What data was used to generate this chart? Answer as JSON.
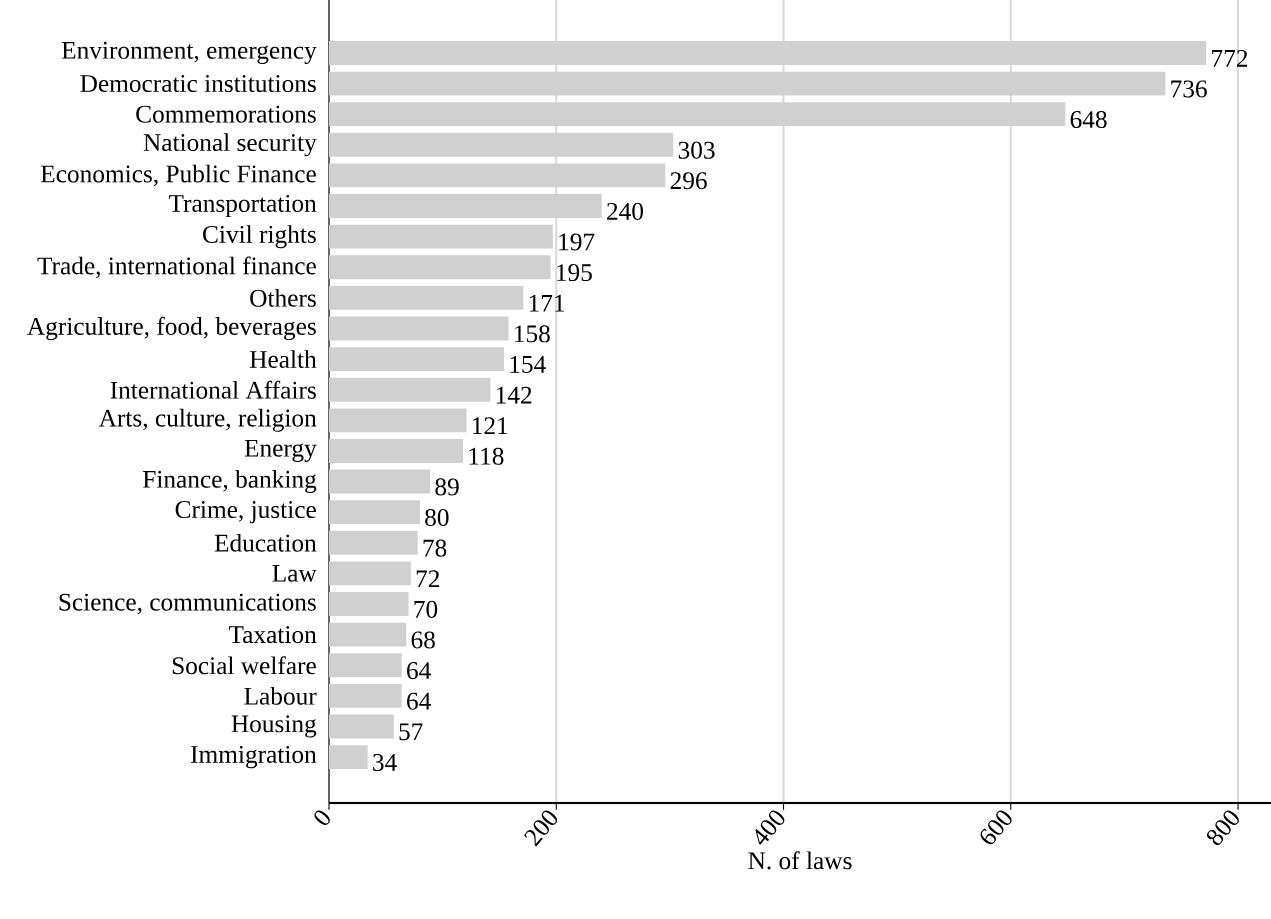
{
  "chart_data": {
    "type": "bar",
    "orientation": "horizontal",
    "xlabel": "N. of laws",
    "categories": [
      "Environment, emergency",
      "Democratic institutions",
      "Commemorations",
      "National security",
      "Economics, Public Finance",
      "Transportation",
      "Civil rights",
      "Trade, international finance",
      "Others",
      "Agriculture, food, beverages",
      "Health",
      "International Affairs",
      "Arts, culture, religion",
      "Energy",
      "Finance, banking",
      "Crime, justice",
      "Education",
      "Law",
      "Science, communications",
      "Taxation",
      "Social welfare",
      "Labour",
      "Housing",
      "Immigration"
    ],
    "values": [
      772,
      736,
      648,
      303,
      296,
      240,
      197,
      195,
      171,
      158,
      154,
      142,
      121,
      118,
      89,
      80,
      78,
      72,
      70,
      68,
      64,
      64,
      57,
      34
    ],
    "color": "#d0d0d0",
    "data_labels": true,
    "grid": "x",
    "xlim": [
      0,
      829
    ],
    "xticks": [
      0,
      200,
      400,
      600,
      800
    ]
  }
}
